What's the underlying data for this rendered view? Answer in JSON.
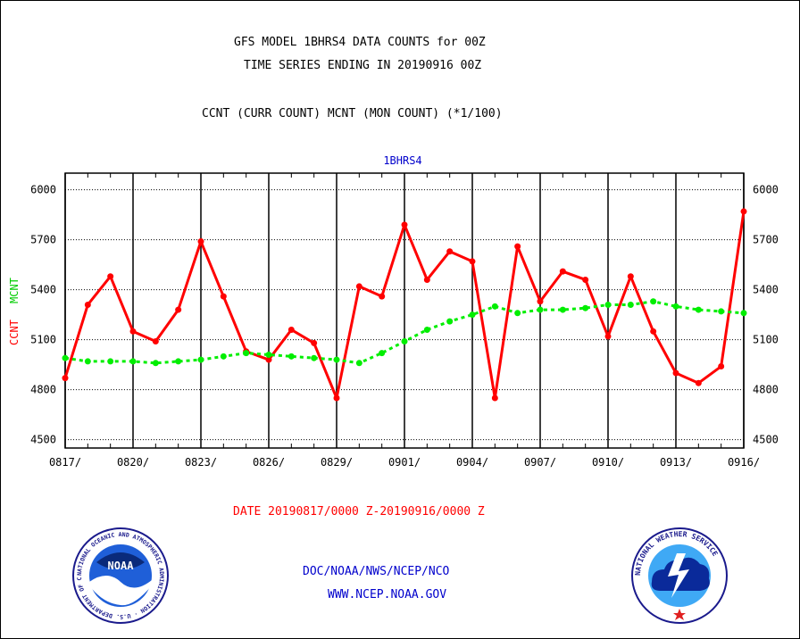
{
  "header": {
    "title_line1": "GFS MODEL 1BHRS4 DATA COUNTS for 00Z",
    "title_line2": "TIME SERIES ENDING IN 20190916 00Z",
    "subtitle": "CCNT (CURR COUNT) MCNT (MON COUNT) (*1/100)"
  },
  "footer": {
    "date_range": "DATE 20190817/0000 Z-20190916/0000 Z",
    "org_line": "DOC/NOAA/NWS/NCEP/NCO",
    "website": "WWW.NCEP.NOAA.GOV",
    "noaa_logo_text": "NOAA",
    "noaa_logo_ring": "NATIONAL OCEANIC AND ATMOSPHERIC ADMINISTRATION · U.S. DEPARTMENT OF COMMERCE",
    "nws_logo_ring": "NATIONAL WEATHER SERVICE"
  },
  "colors": {
    "ccnt": "#ff0000",
    "mcnt": "#00ee00",
    "text_blue": "#0000cc",
    "grid": "#000000"
  },
  "chart_data": {
    "type": "line",
    "title": "1BHRS4",
    "ylabel_left": [
      "CCNT",
      "MCNT"
    ],
    "ylim": [
      4450,
      6100
    ],
    "yticks": [
      4500,
      4800,
      5100,
      5400,
      5700,
      6000
    ],
    "xtick_labels": [
      "0817/",
      "0820/",
      "0823/",
      "0826/",
      "0829/",
      "0901/",
      "0904/",
      "0907/",
      "0910/",
      "0913/",
      "0916/"
    ],
    "x": [
      "0817",
      "0818",
      "0819",
      "0820",
      "0821",
      "0822",
      "0823",
      "0824",
      "0825",
      "0826",
      "0827",
      "0828",
      "0829",
      "0830",
      "0831",
      "0901",
      "0902",
      "0903",
      "0904",
      "0905",
      "0906",
      "0907",
      "0908",
      "0909",
      "0910",
      "0911",
      "0912",
      "0913",
      "0914",
      "0915",
      "0916"
    ],
    "grid": true,
    "series": [
      {
        "name": "CCNT",
        "color": "#ff0000",
        "style": "solid",
        "values": [
          4870,
          5310,
          5480,
          5150,
          5090,
          5280,
          5690,
          5360,
          5030,
          4980,
          5160,
          5080,
          4750,
          5420,
          5360,
          5790,
          5460,
          5630,
          5570,
          4750,
          5660,
          5330,
          5510,
          5460,
          5120,
          5480,
          5150,
          4900,
          4840,
          4940,
          5870
        ]
      },
      {
        "name": "MCNT",
        "color": "#00ee00",
        "style": "dotted",
        "values": [
          4990,
          4970,
          4970,
          4970,
          4960,
          4970,
          4980,
          5000,
          5020,
          5010,
          5000,
          4990,
          4980,
          4960,
          5020,
          5090,
          5160,
          5210,
          5250,
          5300,
          5260,
          5280,
          5280,
          5290,
          5310,
          5310,
          5330,
          5300,
          5280,
          5270,
          5260
        ]
      }
    ]
  }
}
